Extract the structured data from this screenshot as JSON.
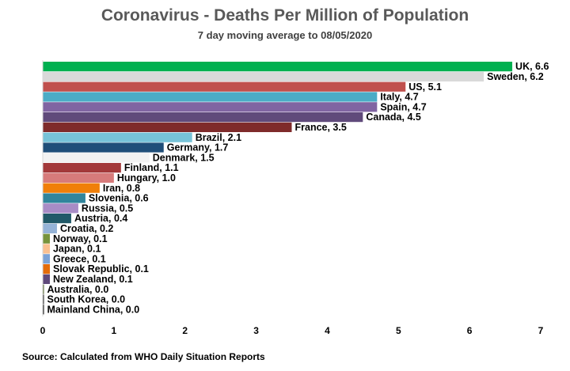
{
  "header": {
    "title": "Coronavirus - Deaths Per Million of Population",
    "subtitle": "7 day moving average to 08/05/2020"
  },
  "footer": {
    "source": "Source: Calculated from WHO Daily Situation Reports"
  },
  "chart_data": {
    "type": "bar",
    "orientation": "horizontal",
    "title": "Coronavirus - Deaths Per Million of Population",
    "subtitle": "7 day moving average to 08/05/2020",
    "xlabel": "",
    "ylabel": "",
    "xlim": [
      0,
      7
    ],
    "x_ticks": [
      "0",
      "1",
      "2",
      "3",
      "4",
      "5",
      "6",
      "7"
    ],
    "grid": false,
    "legend": "none",
    "categories": [
      "UK",
      "Sweden",
      "US",
      "Italy",
      "Spain",
      "Canada",
      "France",
      "Brazil",
      "Germany",
      "Denmark",
      "Finland",
      "Hungary",
      "Iran",
      "Slovenia",
      "Russia",
      "Austria",
      "Croatia",
      "Norway",
      "Japan",
      "Greece",
      "Slovak Republic",
      "New Zealand",
      "Australia",
      "South Korea",
      "Mainland China"
    ],
    "values": [
      6.6,
      6.2,
      5.1,
      4.7,
      4.7,
      4.5,
      3.5,
      2.1,
      1.7,
      1.5,
      1.1,
      1.0,
      0.8,
      0.6,
      0.5,
      0.4,
      0.2,
      0.1,
      0.1,
      0.1,
      0.1,
      0.1,
      0.0,
      0.0,
      0.0
    ],
    "labels": [
      "UK, 6.6",
      "Sweden, 6.2",
      "US, 5.1",
      "Italy, 4.7",
      "Spain, 4.7",
      "Canada, 4.5",
      "France, 3.5",
      "Brazil, 2.1",
      "Germany, 1.7",
      "Denmark, 1.5",
      "Finland, 1.1",
      "Hungary, 1.0",
      "Iran, 0.8",
      "Slovenia, 0.6",
      "Russia, 0.5",
      "Austria, 0.4",
      "Croatia, 0.2",
      "Norway, 0.1",
      "Japan, 0.1",
      "Greece, 0.1",
      "Slovak Republic, 0.1",
      "New Zealand, 0.1",
      "Australia, 0.0",
      "South Korea, 0.0",
      "Mainland China, 0.0"
    ],
    "colors": [
      "#00B050",
      "#D9D9D9",
      "#C0504D",
      "#4BACC6",
      "#8064A2",
      "#604A7B",
      "#7F2B2B",
      "#77C3D8",
      "#1F4E79",
      "#F2F2F2",
      "#A3393A",
      "#D77B7B",
      "#F07F09",
      "#31859C",
      "#A88CC6",
      "#215968",
      "#95B3D7",
      "#77933C",
      "#FAC090",
      "#7BA2D6",
      "#E46C0A",
      "#5F497A",
      "#4F6228",
      "#1F1F1F",
      "#000000"
    ]
  }
}
